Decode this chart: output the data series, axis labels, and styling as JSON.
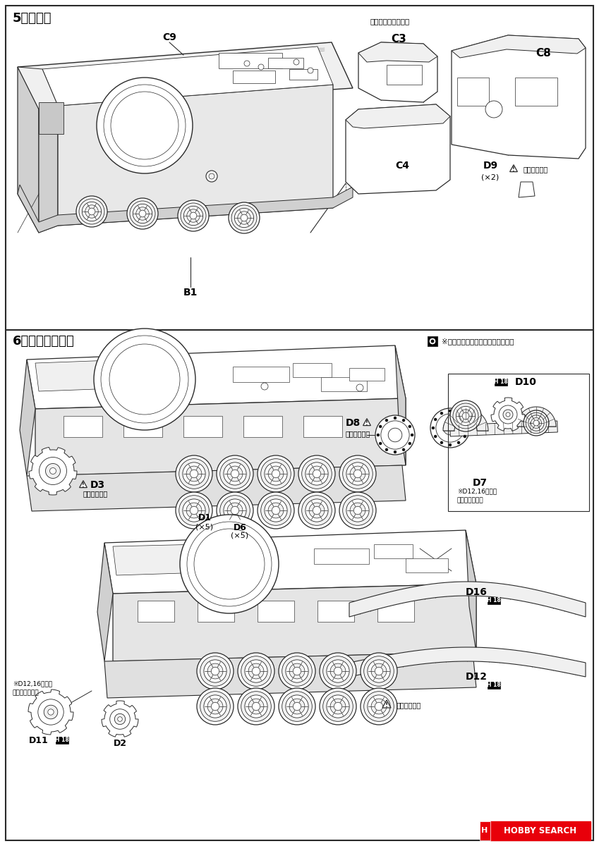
{
  "bg_color": "#ffffff",
  "dark": "#1a1a1a",
  "line_color": "#2a2a2a",
  "gray_fill": "#f0f0f0",
  "mid_gray": "#d0d0d0",
  "step5_label": "5《車体》",
  "step6_label": "6《転輪・履帯》",
  "step5_sublabel": "後部大型バスケット",
  "note6": "※左側も全て同様に取り付けます。",
  "note6b": "※D12,16の後に\n取り付けます。",
  "d8_warn": "向きに注意。",
  "d3_warn": "向きに注意。",
  "d_warn": "向きに注意。",
  "hobby_search_color": "#e8000a",
  "hobby_search_text": "HOBBY SEARCH",
  "h18_bg": "#1a1a1a"
}
